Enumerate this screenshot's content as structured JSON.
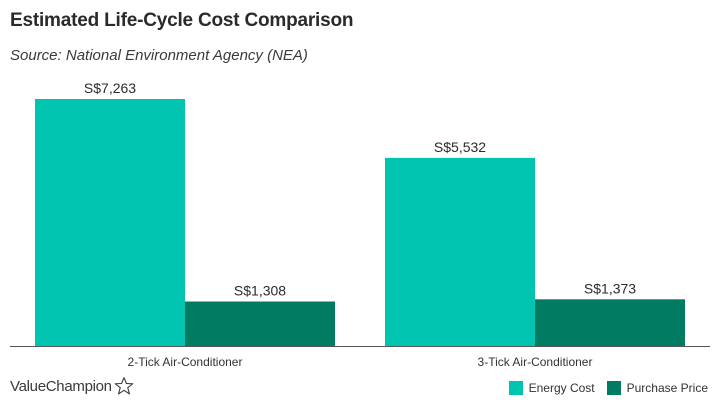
{
  "header": {
    "title": "Estimated Life-Cycle Cost Comparison",
    "subtitle": "Source: National Environment Agency (NEA)"
  },
  "brand": {
    "name": "ValueChampion",
    "icon": "star-icon"
  },
  "colors": {
    "energy": "#00c4b0",
    "purchase": "#017b62",
    "axis": "#555555"
  },
  "chart_data": {
    "type": "bar",
    "title": "Estimated Life-Cycle Cost Comparison",
    "subtitle": "Source: National Environment Agency (NEA)",
    "categories": [
      "2-Tick Air-Conditioner",
      "3-Tick Air-Conditioner"
    ],
    "series": [
      {
        "name": "Energy Cost",
        "values": [
          7263,
          5532
        ],
        "labels": [
          "S$7,263",
          "S$5,532"
        ]
      },
      {
        "name": "Purchase Price",
        "values": [
          1308,
          1373
        ],
        "labels": [
          "S$1,308",
          "S$1,373"
        ]
      }
    ],
    "xlabel": "",
    "ylabel": "",
    "ylim": [
      0,
      7263
    ],
    "grid": false,
    "legend_position": "bottom-right"
  },
  "legend": {
    "items": [
      {
        "label": "Energy Cost"
      },
      {
        "label": "Purchase Price"
      }
    ]
  }
}
